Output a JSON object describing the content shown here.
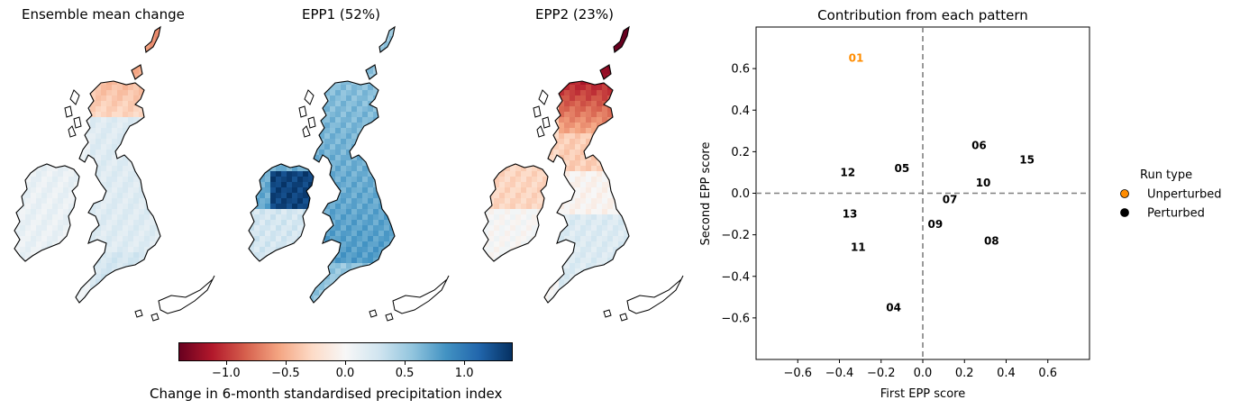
{
  "maps": [
    {
      "title": "Ensemble mean change",
      "style": "mean"
    },
    {
      "title": "EPP1 (52%)",
      "style": "epp1"
    },
    {
      "title": "EPP2 (23%)",
      "style": "epp2"
    }
  ],
  "colorbar": {
    "label": "Change in 6-month standardised precipitation index",
    "ticks": [
      "−1.0",
      "−0.5",
      "0.0",
      "0.5",
      "1.0"
    ],
    "tick_values": [
      -1.0,
      -0.5,
      0.0,
      0.5,
      1.0
    ],
    "range": [
      -1.4,
      1.4
    ],
    "colormap": "RdBu",
    "colors": [
      "#67001f",
      "#b2182b",
      "#d6604d",
      "#f4a582",
      "#fddbc7",
      "#f7f7f7",
      "#d1e5f0",
      "#92c5de",
      "#4393c3",
      "#2166ac",
      "#053061"
    ]
  },
  "chart_data": {
    "type": "scatter",
    "title": "Contribution from each pattern",
    "xlabel": "First EPP score",
    "ylabel": "Second EPP score",
    "xlim": [
      -0.8,
      0.8
    ],
    "ylim": [
      -0.8,
      0.8
    ],
    "xticks": [
      "−0.6",
      "−0.4",
      "−0.2",
      "0.0",
      "0.2",
      "0.4",
      "0.6"
    ],
    "xtick_values": [
      -0.6,
      -0.4,
      -0.2,
      0.0,
      0.2,
      0.4,
      0.6
    ],
    "yticks": [
      "−0.6",
      "−0.4",
      "−0.2",
      "0.0",
      "0.2",
      "0.4",
      "0.6"
    ],
    "ytick_values": [
      -0.6,
      -0.4,
      -0.2,
      0.0,
      0.2,
      0.4,
      0.6
    ],
    "reference_lines": {
      "x": 0.0,
      "y": 0.0,
      "style": "dashed",
      "color": "#808080"
    },
    "grid": false,
    "legend": {
      "title": "Run type",
      "placement": "outside-right",
      "entries": [
        {
          "label": "Unperturbed",
          "color": "#ff8c00"
        },
        {
          "label": "Perturbed",
          "color": "#000000"
        }
      ]
    },
    "points": [
      {
        "label": "01",
        "x": -0.32,
        "y": 0.65,
        "type": "Unperturbed"
      },
      {
        "label": "04",
        "x": -0.14,
        "y": -0.55,
        "type": "Perturbed"
      },
      {
        "label": "05",
        "x": -0.1,
        "y": 0.12,
        "type": "Perturbed"
      },
      {
        "label": "06",
        "x": 0.27,
        "y": 0.23,
        "type": "Perturbed"
      },
      {
        "label": "07",
        "x": 0.13,
        "y": -0.03,
        "type": "Perturbed"
      },
      {
        "label": "08",
        "x": 0.33,
        "y": -0.23,
        "type": "Perturbed"
      },
      {
        "label": "09",
        "x": 0.06,
        "y": -0.15,
        "type": "Perturbed"
      },
      {
        "label": "10",
        "x": 0.29,
        "y": 0.05,
        "type": "Perturbed"
      },
      {
        "label": "11",
        "x": -0.31,
        "y": -0.26,
        "type": "Perturbed"
      },
      {
        "label": "12",
        "x": -0.36,
        "y": 0.1,
        "type": "Perturbed"
      },
      {
        "label": "13",
        "x": -0.35,
        "y": -0.1,
        "type": "Perturbed"
      },
      {
        "label": "15",
        "x": 0.5,
        "y": 0.16,
        "type": "Perturbed"
      }
    ]
  }
}
